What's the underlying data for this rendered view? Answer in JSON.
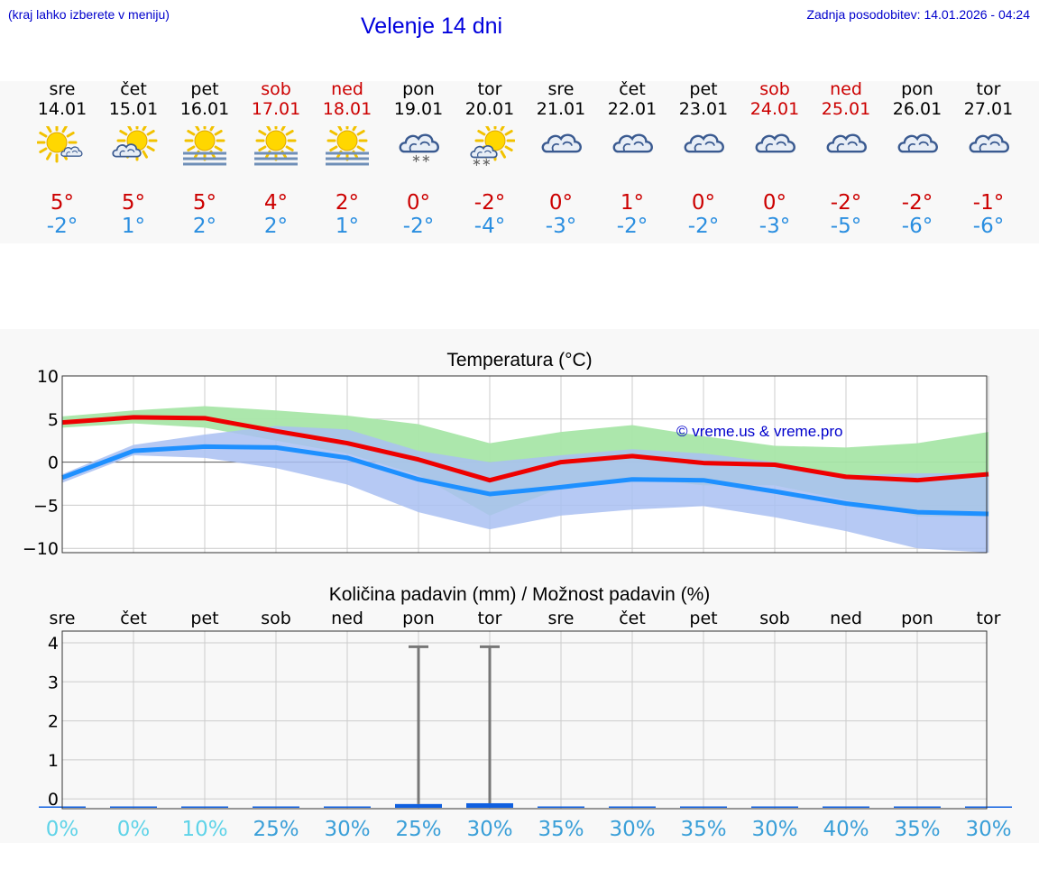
{
  "header": {
    "menu_hint": "(kraj lahko izberete v meniju)",
    "title": "Velenje 14 dni",
    "updated": "Zadnja posodobitev: 14.01.2026 - 04:24"
  },
  "colors": {
    "max_temp": "#ee0000",
    "min_temp": "#1e90ff",
    "weekend": "#cc0000",
    "max_band": "#a8e6a8",
    "min_band": "#a9c0f2",
    "precip_bar": "#1060e0",
    "pct_light": "#5fd3e8",
    "pct_dark": "#3a9fd8"
  },
  "days": [
    {
      "name": "sre",
      "date": "14.01",
      "weekend": false,
      "icon": "sun-cloud-icon",
      "tmax": "5°",
      "tmin": "-2°"
    },
    {
      "name": "čet",
      "date": "15.01",
      "weekend": false,
      "icon": "cloud-sun-icon",
      "tmax": "5°",
      "tmin": "1°"
    },
    {
      "name": "pet",
      "date": "16.01",
      "weekend": false,
      "icon": "sun-fog-icon",
      "tmax": "5°",
      "tmin": "2°"
    },
    {
      "name": "sob",
      "date": "17.01",
      "weekend": true,
      "icon": "sun-fog-icon",
      "tmax": "4°",
      "tmin": "2°"
    },
    {
      "name": "ned",
      "date": "18.01",
      "weekend": true,
      "icon": "sun-fog-icon",
      "tmax": "2°",
      "tmin": "1°"
    },
    {
      "name": "pon",
      "date": "19.01",
      "weekend": false,
      "icon": "cloud-snow-icon",
      "tmax": "0°",
      "tmin": "-2°"
    },
    {
      "name": "tor",
      "date": "20.01",
      "weekend": false,
      "icon": "sun-cloud-snow-icon",
      "tmax": "-2°",
      "tmin": "-4°"
    },
    {
      "name": "sre",
      "date": "21.01",
      "weekend": false,
      "icon": "cloudy-icon",
      "tmax": "0°",
      "tmin": "-3°"
    },
    {
      "name": "čet",
      "date": "22.01",
      "weekend": false,
      "icon": "cloudy-icon",
      "tmax": "1°",
      "tmin": "-2°"
    },
    {
      "name": "pet",
      "date": "23.01",
      "weekend": false,
      "icon": "cloudy-icon",
      "tmax": "0°",
      "tmin": "-2°"
    },
    {
      "name": "sob",
      "date": "24.01",
      "weekend": true,
      "icon": "cloudy-icon",
      "tmax": "0°",
      "tmin": "-3°"
    },
    {
      "name": "ned",
      "date": "25.01",
      "weekend": true,
      "icon": "cloudy-icon",
      "tmax": "-2°",
      "tmin": "-5°"
    },
    {
      "name": "pon",
      "date": "26.01",
      "weekend": false,
      "icon": "cloudy-icon",
      "tmax": "-2°",
      "tmin": "-6°"
    },
    {
      "name": "tor",
      "date": "27.01",
      "weekend": false,
      "icon": "cloudy-icon",
      "tmax": "-1°",
      "tmin": "-6°"
    }
  ],
  "chart_data": [
    {
      "type": "line",
      "title": "Temperatura (°C)",
      "watermark": "© vreme.us & vreme.pro",
      "x": [
        0,
        1,
        2,
        3,
        4,
        5,
        6,
        7,
        8,
        9,
        10,
        11,
        12,
        13
      ],
      "ylim": [
        -10.5,
        10
      ],
      "yticks": [
        10,
        5,
        0,
        -5,
        -10
      ],
      "ytick_labels": [
        "10",
        "5",
        "0",
        "−5",
        "−10"
      ],
      "grid": true,
      "series": [
        {
          "name": "max",
          "values": [
            4.6,
            5.2,
            5.1,
            3.6,
            2.2,
            0.3,
            -2.1,
            0.0,
            0.7,
            -0.1,
            -0.3,
            -1.7,
            -2.1,
            -1.4
          ]
        },
        {
          "name": "min",
          "values": [
            -1.8,
            1.3,
            1.8,
            1.7,
            0.5,
            -2.0,
            -3.7,
            -2.9,
            -2.0,
            -2.1,
            -3.4,
            -4.8,
            -5.8,
            -6.0
          ]
        }
      ],
      "bands": [
        {
          "name": "max_range",
          "upper": [
            5.3,
            6.0,
            6.5,
            6.0,
            5.4,
            4.4,
            2.2,
            3.5,
            4.3,
            3.0,
            1.9,
            1.7,
            2.2,
            3.5
          ],
          "lower": [
            4.0,
            4.5,
            4.0,
            2.5,
            1.0,
            -1.5,
            -6.2,
            -3.0,
            -1.8,
            -2.7,
            -2.7,
            -4.4,
            -6.3,
            -6.3
          ]
        },
        {
          "name": "min_range",
          "upper": [
            -1.4,
            2.0,
            3.2,
            4.2,
            3.8,
            1.3,
            0.0,
            0.8,
            1.5,
            1.0,
            0.0,
            -1.5,
            -1.3,
            -1.3
          ],
          "lower": [
            -2.4,
            0.8,
            0.5,
            -0.7,
            -2.6,
            -5.8,
            -7.8,
            -6.2,
            -5.5,
            -5.1,
            -6.4,
            -8.0,
            -10.0,
            -10.5
          ]
        }
      ]
    },
    {
      "type": "bar",
      "title": "Količina padavin (mm) / Možnost padavin (%)",
      "categories": [
        "sre",
        "čet",
        "pet",
        "sob",
        "ned",
        "pon",
        "tor",
        "sre",
        "čet",
        "pet",
        "sob",
        "ned",
        "pon",
        "tor"
      ],
      "ylim": [
        -0.25,
        4.3
      ],
      "yticks": [
        4,
        3,
        2,
        1,
        0
      ],
      "values": [
        0,
        0,
        0,
        0,
        0,
        0.05,
        0.07,
        0,
        0,
        0,
        0,
        0,
        0,
        0
      ],
      "error_high": [
        0,
        0,
        0,
        0,
        0,
        3.9,
        3.9,
        0,
        0,
        0,
        0,
        0,
        0,
        0
      ],
      "probability": [
        "0%",
        "0%",
        "10%",
        "25%",
        "30%",
        "25%",
        "30%",
        "35%",
        "30%",
        "35%",
        "30%",
        "40%",
        "35%",
        "30%"
      ]
    }
  ]
}
